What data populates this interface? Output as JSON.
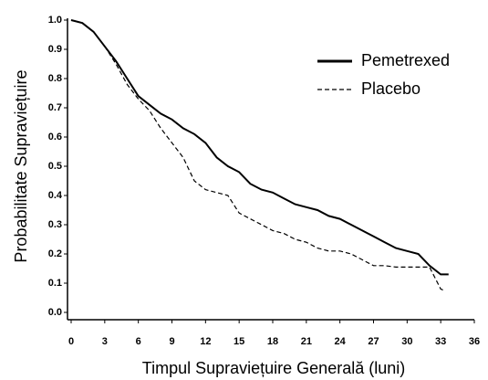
{
  "chart_data": {
    "type": "line",
    "x_label": "Timpul  Supraviețuire Generală (luni)",
    "y_label": "Probabilitate Supraviețuire",
    "xlim": [
      0,
      36
    ],
    "xticks": [
      0,
      3,
      6,
      9,
      12,
      15,
      18,
      21,
      24,
      27,
      30,
      33,
      36
    ],
    "ylim": [
      0,
      1
    ],
    "yticks": [
      {
        "value": 0,
        "label": "0.0"
      },
      0.1,
      0.2,
      0.3,
      0.4,
      0.5,
      0.6,
      0.7,
      0.8,
      0.9,
      {
        "value": 1,
        "label": "1.0"
      }
    ],
    "legend": "top-right",
    "series": [
      {
        "name": "Pemetrexed",
        "color": "#000000",
        "dash": "solid",
        "x": [
          0,
          1,
          2,
          3,
          4,
          5,
          6,
          7,
          8,
          9,
          10,
          11,
          12,
          13,
          14,
          15,
          16,
          17,
          18,
          19,
          20,
          21,
          22,
          23,
          24,
          25,
          26,
          27,
          28,
          29,
          30,
          31,
          32,
          33,
          33.7
        ],
        "values": [
          1.0,
          0.99,
          0.96,
          0.91,
          0.86,
          0.8,
          0.74,
          0.71,
          0.68,
          0.66,
          0.63,
          0.61,
          0.58,
          0.53,
          0.5,
          0.48,
          0.44,
          0.42,
          0.41,
          0.39,
          0.37,
          0.36,
          0.35,
          0.33,
          0.32,
          0.3,
          0.28,
          0.26,
          0.24,
          0.22,
          0.21,
          0.2,
          0.16,
          0.13,
          0.13
        ]
      },
      {
        "name": "Placebo",
        "color": "#000000",
        "dash": "dashed",
        "x": [
          0,
          1,
          2,
          3,
          4,
          5,
          6,
          7,
          8,
          9,
          10,
          11,
          12,
          13,
          14,
          15,
          16,
          17,
          18,
          19,
          20,
          21,
          22,
          23,
          24,
          25,
          26,
          27,
          28,
          29,
          30,
          31,
          32,
          33,
          33.3
        ],
        "values": [
          1.0,
          0.99,
          0.96,
          0.91,
          0.85,
          0.78,
          0.73,
          0.69,
          0.63,
          0.58,
          0.53,
          0.45,
          0.42,
          0.41,
          0.4,
          0.34,
          0.32,
          0.3,
          0.28,
          0.27,
          0.25,
          0.24,
          0.22,
          0.21,
          0.21,
          0.2,
          0.18,
          0.16,
          0.16,
          0.155,
          0.155,
          0.155,
          0.155,
          0.08,
          0.075
        ]
      }
    ]
  }
}
